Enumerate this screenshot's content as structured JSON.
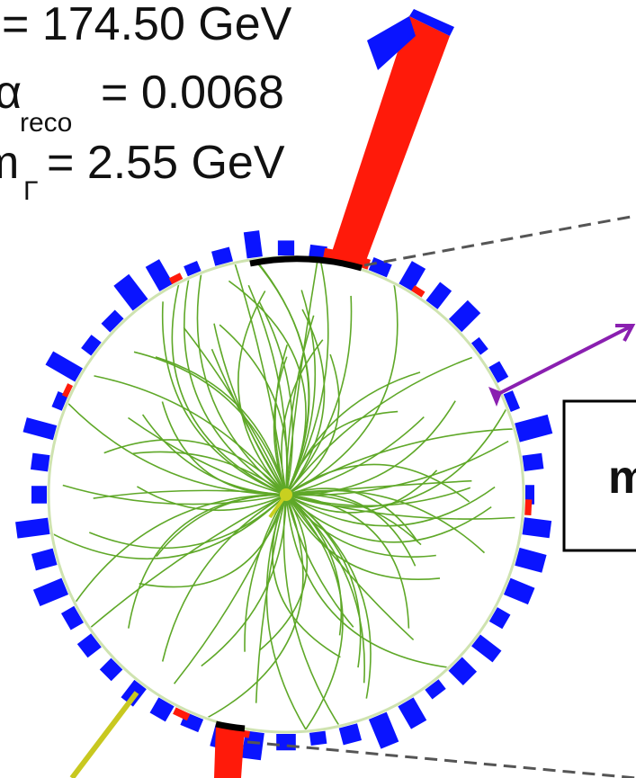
{
  "annotations": {
    "line1": "=  174.50 GeV",
    "line2_symbol": "α",
    "line2_sub": "reco",
    "line2_value": "= 0.0068",
    "line3_symbol": "m",
    "line3_sub": "Γ",
    "line3_value": "= 2.55 GeV"
  },
  "box_label": "m"
}
